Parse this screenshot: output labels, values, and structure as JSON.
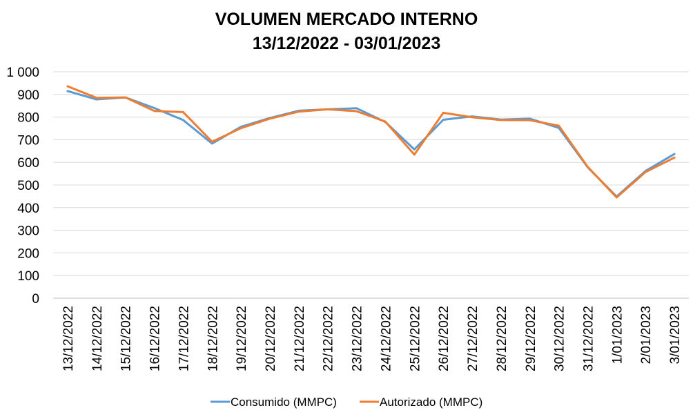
{
  "chart_data": {
    "type": "line",
    "title": "VOLUMEN MERCADO INTERNO",
    "subtitle": "13/12/2022 - 03/01/2023",
    "categories": [
      "13/12/2022",
      "14/12/2022",
      "15/12/2022",
      "16/12/2022",
      "17/12/2022",
      "18/12/2022",
      "19/12/2022",
      "20/12/2022",
      "21/12/2022",
      "22/12/2022",
      "23/12/2022",
      "24/12/2022",
      "25/12/2022",
      "26/12/2022",
      "27/12/2022",
      "28/12/2022",
      "29/12/2022",
      "30/12/2022",
      "31/12/2022",
      "1/01/2023",
      "2/01/2023",
      "3/01/2023"
    ],
    "series": [
      {
        "name": "Consumido (MMPC)",
        "color": "#5B9BD5",
        "values": [
          915,
          878,
          887,
          840,
          787,
          683,
          757,
          796,
          828,
          834,
          839,
          778,
          657,
          788,
          803,
          789,
          793,
          752,
          578,
          449,
          562,
          637
        ]
      },
      {
        "name": "Autorizado (MMPC)",
        "color": "#ED7D31",
        "values": [
          936,
          885,
          887,
          827,
          822,
          691,
          751,
          793,
          824,
          834,
          826,
          780,
          634,
          819,
          799,
          787,
          786,
          762,
          580,
          445,
          557,
          621
        ]
      }
    ],
    "ylim": [
      0,
      1000
    ],
    "yticks": [
      "0",
      "100",
      "200",
      "300",
      "400",
      "500",
      "600",
      "700",
      "800",
      "900",
      "1 000"
    ],
    "ytick_values": [
      0,
      100,
      200,
      300,
      400,
      500,
      600,
      700,
      800,
      900,
      1000
    ],
    "grid": true,
    "legend_position": "bottom"
  }
}
